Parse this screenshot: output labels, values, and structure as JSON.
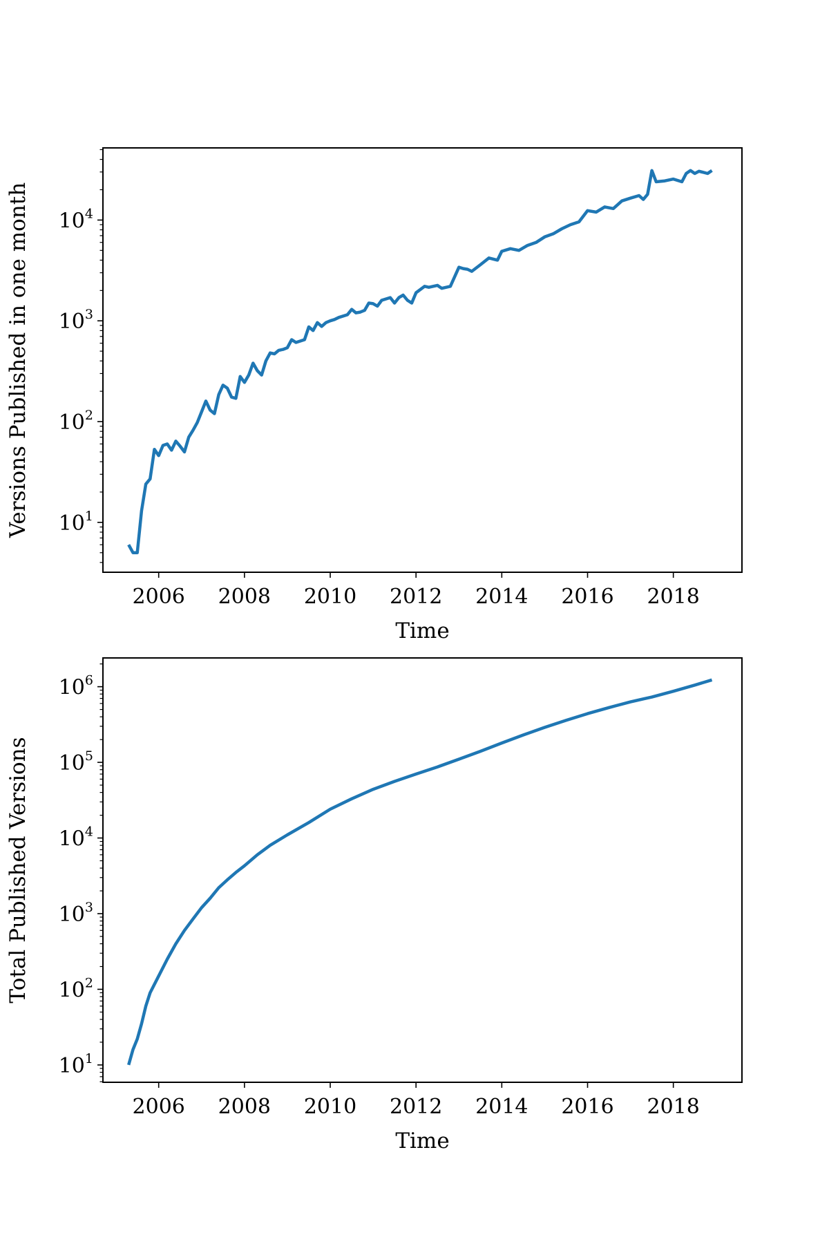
{
  "chart_data": [
    {
      "type": "line",
      "title": "",
      "xlabel": "Time",
      "ylabel": "Versions Published in one month",
      "yscale": "log",
      "xlim": [
        2004.7,
        2019.6
      ],
      "ylim": [
        3.2,
        52000
      ],
      "xticks": [
        2006,
        2008,
        2010,
        2012,
        2014,
        2016,
        2018
      ],
      "xtick_labels": [
        "2006",
        "2008",
        "2010",
        "2012",
        "2014",
        "2016",
        "2018"
      ],
      "yticks": [
        10,
        100,
        1000,
        10000
      ],
      "ytick_labels": [
        {
          "base": "10",
          "exp": "1"
        },
        {
          "base": "10",
          "exp": "2"
        },
        {
          "base": "10",
          "exp": "3"
        },
        {
          "base": "10",
          "exp": "4"
        }
      ],
      "grid": false,
      "color": "#1f77b4",
      "series": [
        {
          "x": [
            2005.3,
            2005.4,
            2005.5,
            2005.6,
            2005.7,
            2005.8,
            2005.9,
            2006.0,
            2006.1,
            2006.2,
            2006.3,
            2006.4,
            2006.5,
            2006.6,
            2006.7,
            2006.8,
            2006.9,
            2007.0,
            2007.1,
            2007.2,
            2007.3,
            2007.4,
            2007.5,
            2007.6,
            2007.7,
            2007.8,
            2007.9,
            2008.0,
            2008.1,
            2008.2,
            2008.3,
            2008.4,
            2008.5,
            2008.6,
            2008.7,
            2008.8,
            2008.9,
            2009.0,
            2009.1,
            2009.2,
            2009.3,
            2009.4,
            2009.5,
            2009.6,
            2009.7,
            2009.8,
            2009.9,
            2010.0,
            2010.1,
            2010.2,
            2010.4,
            2010.5,
            2010.6,
            2010.7,
            2010.8,
            2010.9,
            2011.0,
            2011.1,
            2011.2,
            2011.4,
            2011.5,
            2011.6,
            2011.7,
            2011.8,
            2011.9,
            2012.0,
            2012.2,
            2012.3,
            2012.5,
            2012.6,
            2012.8,
            2013.0,
            2013.1,
            2013.2,
            2013.3,
            2013.5,
            2013.7,
            2013.9,
            2014.0,
            2014.2,
            2014.4,
            2014.6,
            2014.8,
            2015.0,
            2015.2,
            2015.4,
            2015.6,
            2015.8,
            2016.0,
            2016.2,
            2016.4,
            2016.6,
            2016.8,
            2017.0,
            2017.2,
            2017.3,
            2017.4,
            2017.5,
            2017.6,
            2017.8,
            2018.0,
            2018.2,
            2018.3,
            2018.4,
            2018.5,
            2018.6,
            2018.8,
            2018.9
          ],
          "y": [
            6,
            5,
            5,
            13,
            24,
            27,
            53,
            46,
            58,
            60,
            52,
            64,
            57,
            50,
            70,
            82,
            98,
            125,
            160,
            130,
            120,
            185,
            230,
            215,
            175,
            170,
            280,
            245,
            290,
            380,
            320,
            290,
            400,
            480,
            470,
            510,
            520,
            540,
            650,
            610,
            630,
            650,
            870,
            800,
            960,
            880,
            960,
            1000,
            1030,
            1080,
            1150,
            1300,
            1200,
            1220,
            1270,
            1500,
            1480,
            1400,
            1600,
            1700,
            1500,
            1700,
            1800,
            1600,
            1500,
            1900,
            2200,
            2150,
            2250,
            2100,
            2200,
            3400,
            3300,
            3250,
            3100,
            3600,
            4200,
            4000,
            4900,
            5200,
            5000,
            5600,
            6000,
            6800,
            7300,
            8200,
            9000,
            9600,
            12400,
            12000,
            13500,
            13000,
            15500,
            16500,
            17500,
            16000,
            18000,
            31000,
            24000,
            24500,
            25500,
            24000,
            29000,
            31000,
            29000,
            30500,
            29000,
            31000
          ]
        }
      ]
    },
    {
      "type": "line",
      "title": "",
      "xlabel": "Time",
      "ylabel": "Total Published Versions",
      "yscale": "log",
      "xlim": [
        2004.7,
        2019.6
      ],
      "ylim": [
        5.9,
        2400000
      ],
      "xticks": [
        2006,
        2008,
        2010,
        2012,
        2014,
        2016,
        2018
      ],
      "xtick_labels": [
        "2006",
        "2008",
        "2010",
        "2012",
        "2014",
        "2016",
        "2018"
      ],
      "yticks": [
        10,
        100,
        1000,
        10000,
        100000,
        1000000
      ],
      "ytick_labels": [
        {
          "base": "10",
          "exp": "1"
        },
        {
          "base": "10",
          "exp": "2"
        },
        {
          "base": "10",
          "exp": "3"
        },
        {
          "base": "10",
          "exp": "4"
        },
        {
          "base": "10",
          "exp": "5"
        },
        {
          "base": "10",
          "exp": "6"
        }
      ],
      "grid": false,
      "color": "#1f77b4",
      "series": [
        {
          "x": [
            2005.3,
            2005.4,
            2005.5,
            2005.6,
            2005.7,
            2005.8,
            2006.0,
            2006.2,
            2006.4,
            2006.6,
            2006.8,
            2007.0,
            2007.2,
            2007.4,
            2007.6,
            2007.8,
            2008.0,
            2008.3,
            2008.6,
            2009.0,
            2009.5,
            2010.0,
            2010.5,
            2011.0,
            2011.5,
            2012.0,
            2012.5,
            2013.0,
            2013.5,
            2014.0,
            2014.5,
            2015.0,
            2015.5,
            2016.0,
            2016.5,
            2017.0,
            2017.3,
            2017.5,
            2018.0,
            2018.5,
            2018.9
          ],
          "y": [
            10,
            16,
            22,
            35,
            60,
            90,
            150,
            250,
            400,
            600,
            850,
            1200,
            1600,
            2200,
            2800,
            3500,
            4300,
            6000,
            8000,
            11000,
            16000,
            24000,
            33000,
            44000,
            56000,
            70000,
            87000,
            110000,
            140000,
            180000,
            230000,
            290000,
            360000,
            440000,
            530000,
            630000,
            690000,
            730000,
            870000,
            1050000,
            1230000
          ]
        }
      ]
    }
  ]
}
